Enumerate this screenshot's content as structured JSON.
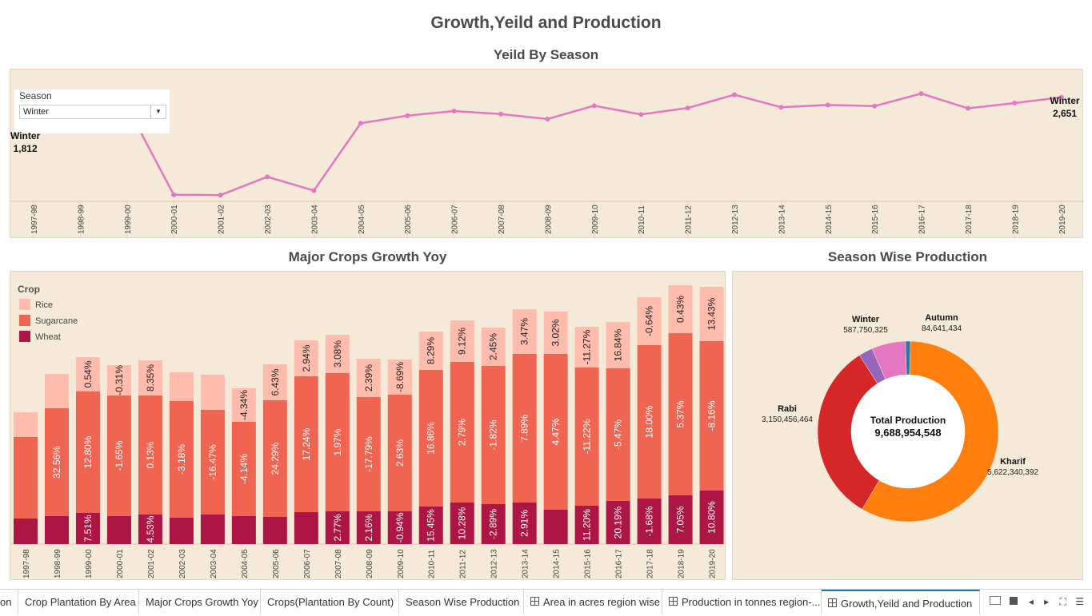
{
  "dashboard": {
    "title": "Growth,Yeild and Production"
  },
  "yield_chart": {
    "title": "Yeild By Season",
    "filter": {
      "label": "Season",
      "value": "Winter"
    },
    "start_label": {
      "name": "Winter",
      "value": "1,812"
    },
    "end_label": {
      "name": "Winter",
      "value": "2,651"
    }
  },
  "growth_chart": {
    "title": "Major Crops Growth Yoy",
    "legend_title": "Crop"
  },
  "production_chart": {
    "title": "Season Wise Production",
    "center_title": "Total Production",
    "center_value": "9,688,954,548"
  },
  "chart_data": [
    {
      "type": "line",
      "title": "Yeild By Season",
      "series_name": "Winter",
      "x": [
        "1997-98",
        "1998-99",
        "1999-00",
        "2000-01",
        "2001-02",
        "2002-03",
        "2003-04",
        "2004-05",
        "2005-06",
        "2006-07",
        "2007-08",
        "2008-09",
        "2009-10",
        "2010-11",
        "2011-12",
        "2012-13",
        "2013-14",
        "2014-15",
        "2015-16",
        "2016-17",
        "2017-18",
        "2018-19",
        "2019-20"
      ],
      "y": [
        1812,
        2690,
        2410,
        90,
        80,
        560,
        200,
        1970,
        2170,
        2290,
        2210,
        2080,
        2430,
        2200,
        2370,
        2720,
        2390,
        2450,
        2420,
        2750,
        2360,
        2500,
        2651
      ],
      "color": "#e377c2"
    },
    {
      "type": "bar",
      "stacked": true,
      "title": "Major Crops Growth Yoy",
      "categories": [
        "1997-98",
        "1998-99",
        "1999-00",
        "2000-01",
        "2001-02",
        "2002-03",
        "2003-04",
        "2004-05",
        "2005-06",
        "2006-07",
        "2007-08",
        "2008-09",
        "2009-10",
        "2010-11",
        "2011-12",
        "2012-13",
        "2013-14",
        "2014-15",
        "2015-16",
        "2016-17",
        "2017-18",
        "2018-19",
        "2019-20"
      ],
      "series": [
        {
          "name": "Wheat",
          "color": "#ad1644",
          "values": [
            32,
            35,
            39,
            35,
            37,
            33,
            37,
            35,
            34,
            40,
            41,
            41,
            41,
            47,
            52,
            50,
            52,
            43,
            48,
            54,
            57,
            61,
            67
          ],
          "labels": [
            "",
            "",
            "7.51%",
            "",
            "4.53%",
            "",
            "",
            "",
            "",
            "",
            "2.77%",
            "2.16%",
            "-0.94%",
            "15.45%",
            "10.28%",
            "-2.89%",
            "2.91%",
            "",
            "11.20%",
            "20.19%",
            "-1.68%",
            "7.05%",
            "10.80%"
          ]
        },
        {
          "name": "Sugarcane",
          "color": "#f06452",
          "values": [
            102,
            135,
            152,
            151,
            149,
            146,
            131,
            118,
            146,
            170,
            173,
            143,
            146,
            171,
            176,
            173,
            186,
            195,
            173,
            166,
            192,
            203,
            187
          ],
          "labels": [
            "",
            "32.56%",
            "12.80%",
            "-1.65%",
            "0.13%",
            "-3.18%",
            "-16.47%",
            "-4.14%",
            "24.29%",
            "17.24%",
            "1.97%",
            "-17.79%",
            "2.63%",
            "16.86%",
            "2.79%",
            "-1.82%",
            "7.89%",
            "4.47%",
            "-11.22%",
            "-5.47%",
            "18.00%",
            "5.37%",
            "-8.16%"
          ]
        },
        {
          "name": "Rice",
          "color": "#ffbcac",
          "values": [
            31,
            43,
            43,
            38,
            44,
            36,
            44,
            42,
            45,
            45,
            48,
            48,
            44,
            48,
            52,
            48,
            56,
            53,
            51,
            58,
            60,
            60,
            68
          ],
          "labels": [
            "",
            "",
            "0.54%",
            "-0.31%",
            "8.35%",
            "",
            "",
            "-4.34%",
            "6.43%",
            "2.94%",
            "3.08%",
            "2.39%",
            "-8.69%",
            "8.29%",
            "9.12%",
            "2.45%",
            "3.47%",
            "3.02%",
            "-11.27%",
            "16.84%",
            "-0.64%",
            "0.43%",
            "13.43%"
          ]
        }
      ],
      "legend_position": "top-left"
    },
    {
      "type": "pie",
      "donut": true,
      "title": "Season Wise Production",
      "slices": [
        {
          "name": "Kharif",
          "value": 5622340392,
          "label": "5,622,340,392",
          "color": "#ff7f0e"
        },
        {
          "name": "Rabi",
          "value": 3150456464,
          "label": "3,150,456,464",
          "color": "#d62728"
        },
        {
          "name": "Winter",
          "value": 587750325,
          "label": "587,750,325",
          "color": "#e377c2"
        },
        {
          "name": "Autumn",
          "value": 84641434,
          "label": "84,641,434",
          "color": "#1f77b4"
        },
        {
          "name": "",
          "value": 243766000,
          "label": "",
          "color": "#9467bd"
        }
      ],
      "total_label": "Total Production",
      "total_value": "9,688,954,548"
    }
  ],
  "tabs": [
    {
      "label": "on",
      "icon": false
    },
    {
      "label": "Crop Plantation By Area",
      "icon": false
    },
    {
      "label": "Major Crops Growth Yoy",
      "icon": false
    },
    {
      "label": "Crops(Plantation By Count)",
      "icon": false
    },
    {
      "label": "Season Wise Production",
      "icon": false
    },
    {
      "label": "Area in acres region wise",
      "icon": true
    },
    {
      "label": "Production in tonnes region-...",
      "icon": true
    },
    {
      "label": "Growth,Yeild and Production",
      "icon": true
    }
  ]
}
